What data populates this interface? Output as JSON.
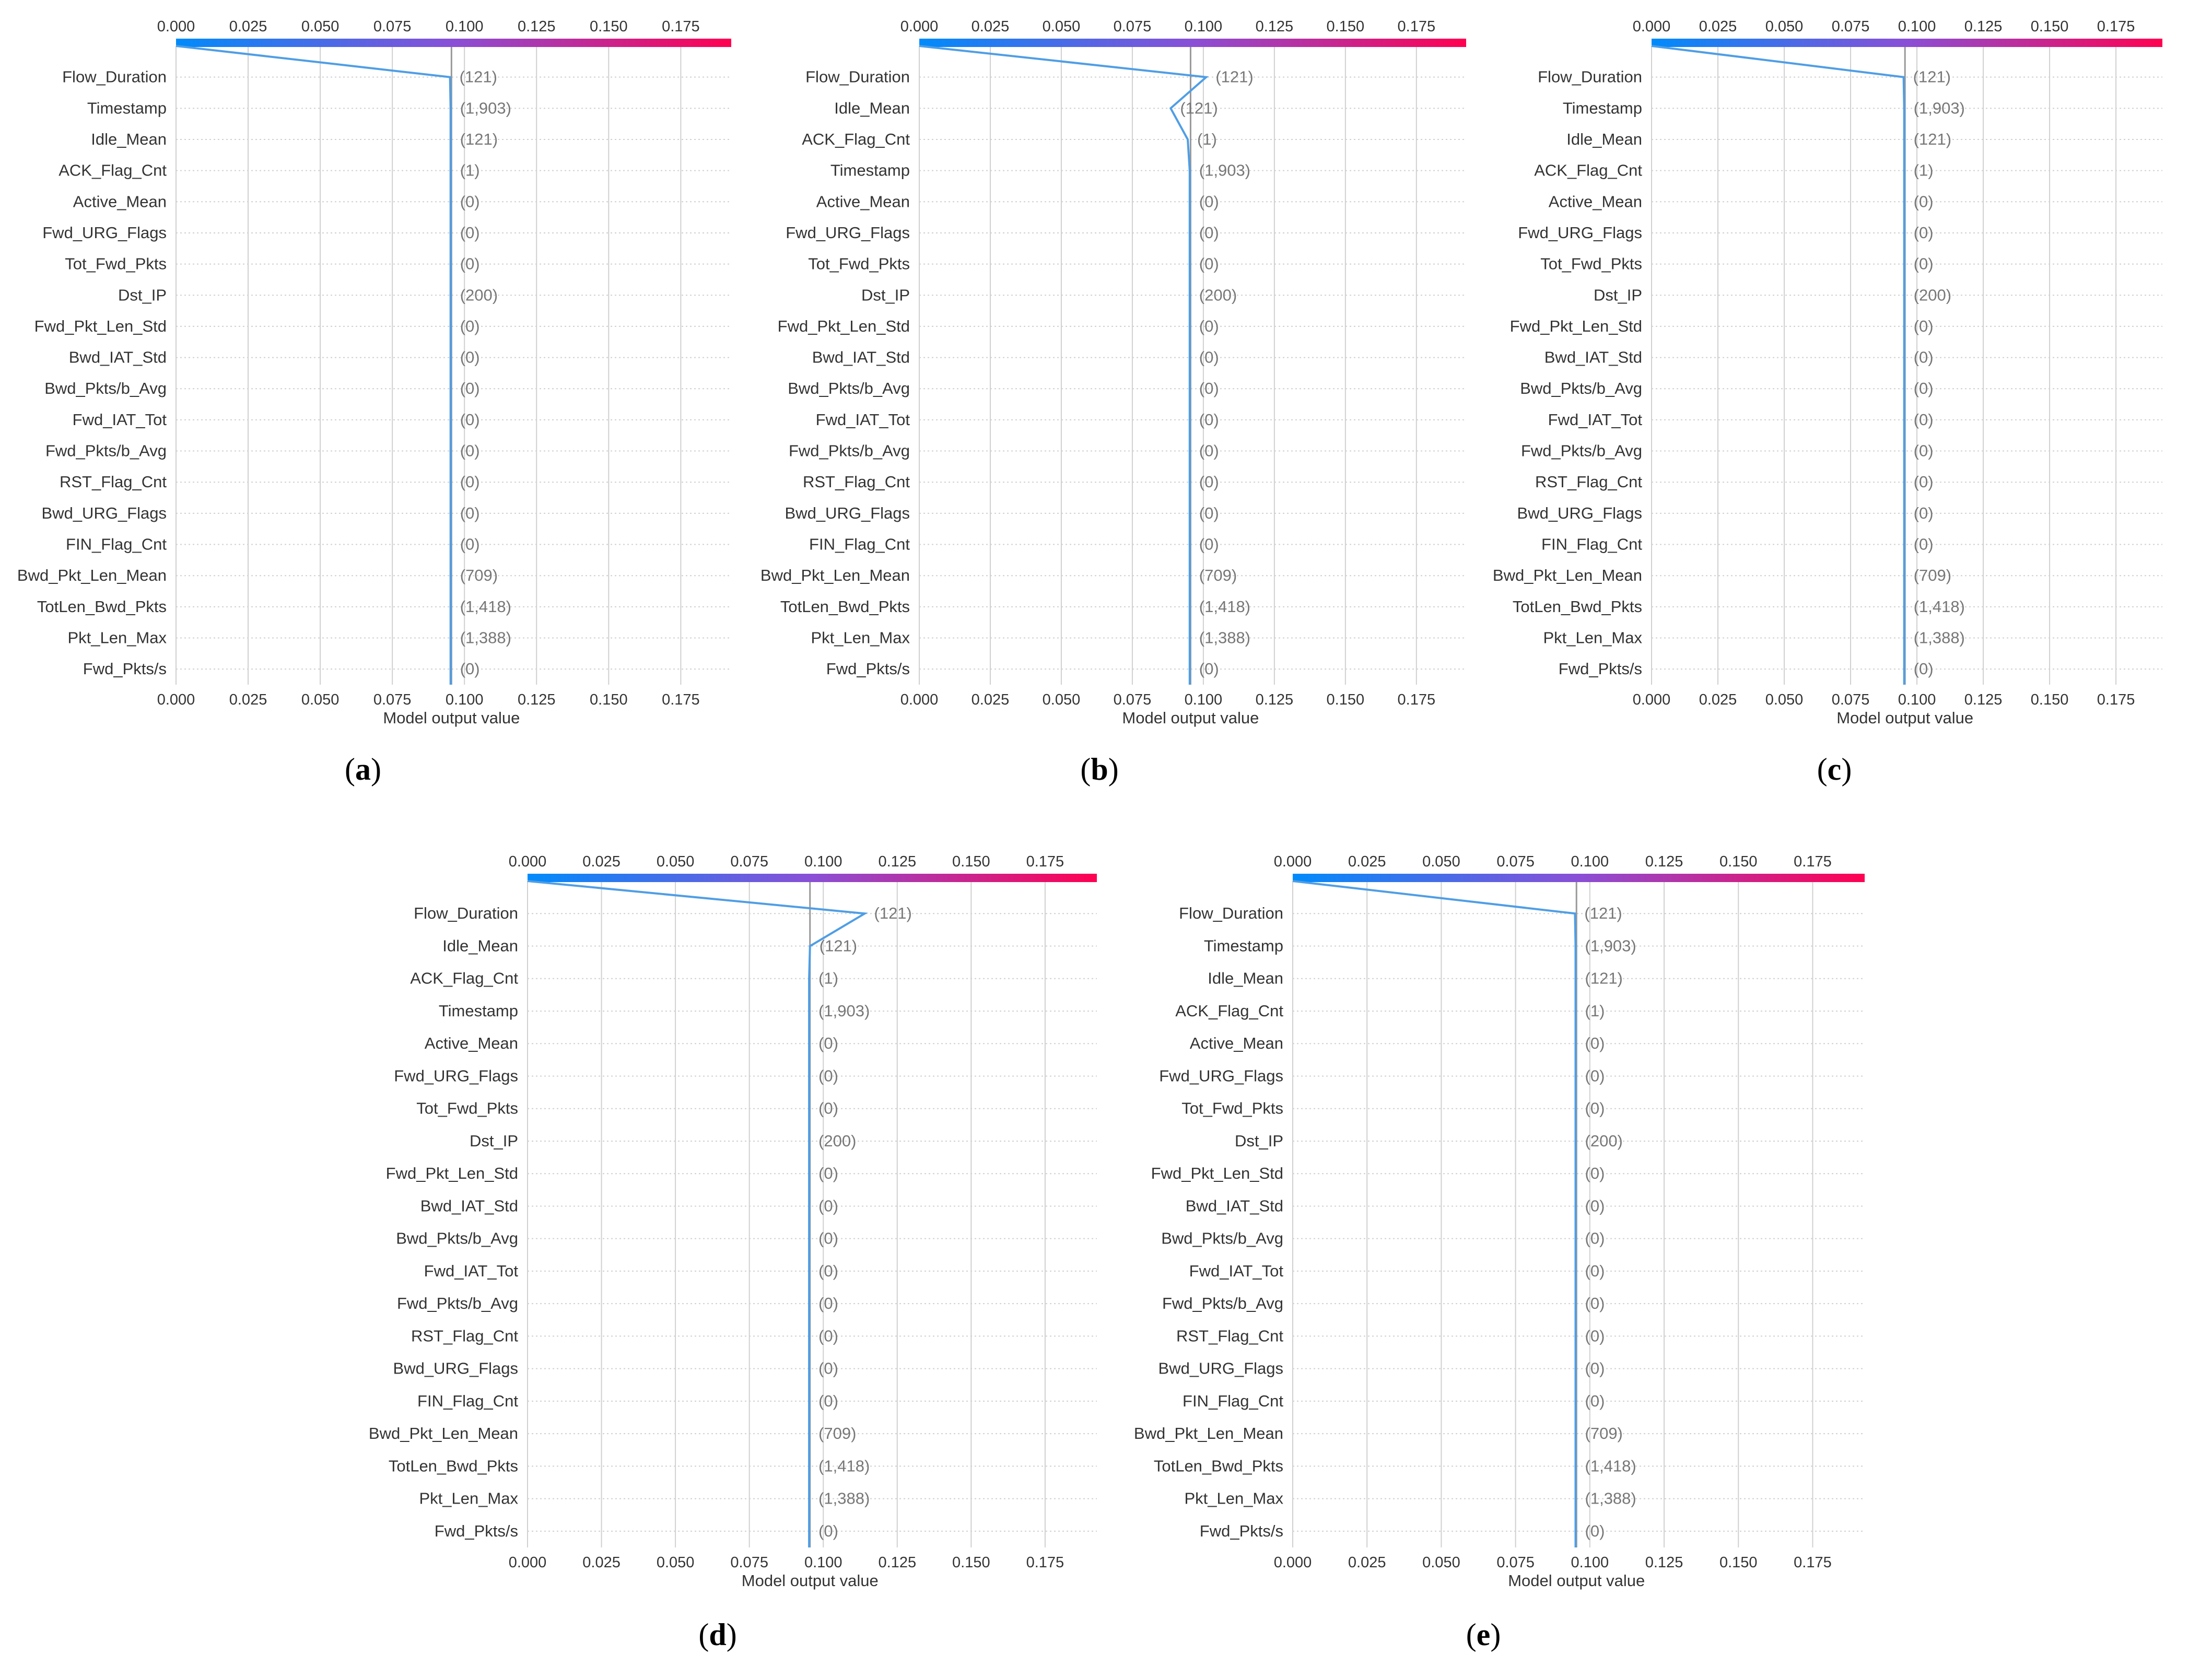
{
  "colors": {
    "gradient_start": "#008bfb",
    "gradient_mid": "#8a4fd6",
    "gradient_end": "#ff0051",
    "decision_line": "#4f9ee5",
    "expected_value_line": "#999999",
    "grid": "#d0d0d0"
  },
  "x_axis_label": "Model output value",
  "tick_labels": [
    "0.000",
    "0.025",
    "0.050",
    "0.075",
    "0.100",
    "0.125",
    "0.150",
    "0.175"
  ],
  "chart_data": [
    {
      "type": "decision_plot",
      "caption_letter": "a",
      "xlabel": "Model output value",
      "xlim": [
        0.0,
        0.1925
      ],
      "x_ticks": [
        0.0,
        0.025,
        0.05,
        0.075,
        0.1,
        0.125,
        0.15,
        0.175
      ],
      "base_value": 0.0955,
      "features": [
        "Flow_Duration",
        "Timestamp",
        "Idle_Mean",
        "ACK_Flag_Cnt",
        "Active_Mean",
        "Fwd_URG_Flags",
        "Tot_Fwd_Pkts",
        "Dst_IP",
        "Fwd_Pkt_Len_Std",
        "Bwd_IAT_Std",
        "Bwd_Pkts/b_Avg",
        "Fwd_IAT_Tot",
        "Fwd_Pkts/b_Avg",
        "RST_Flag_Cnt",
        "Bwd_URG_Flags",
        "FIN_Flag_Cnt",
        "Bwd_Pkt_Len_Mean",
        "TotLen_Bwd_Pkts",
        "Pkt_Len_Max",
        "Fwd_Pkts/s"
      ],
      "feature_values": [
        "(121)",
        "(1,903)",
        "(121)",
        "(1)",
        "(0)",
        "(0)",
        "(0)",
        "(200)",
        "(0)",
        "(0)",
        "(0)",
        "(0)",
        "(0)",
        "(0)",
        "(0)",
        "(0)",
        "(709)",
        "(1,418)",
        "(1,388)",
        "(0)"
      ],
      "path": [
        0.0,
        0.095,
        0.0952,
        0.0952,
        0.0952,
        0.0952,
        0.0952,
        0.0952,
        0.0952,
        0.0952,
        0.0952,
        0.0952,
        0.0952,
        0.0952,
        0.0952,
        0.0952,
        0.0952,
        0.0952,
        0.0952,
        0.0952,
        0.0952
      ]
    },
    {
      "type": "decision_plot",
      "caption_letter": "b",
      "xlabel": "Model output value",
      "xlim": [
        0.0,
        0.1925
      ],
      "x_ticks": [
        0.0,
        0.025,
        0.05,
        0.075,
        0.1,
        0.125,
        0.15,
        0.175
      ],
      "base_value": 0.0955,
      "features": [
        "Flow_Duration",
        "Idle_Mean",
        "ACK_Flag_Cnt",
        "Timestamp",
        "Active_Mean",
        "Fwd_URG_Flags",
        "Tot_Fwd_Pkts",
        "Dst_IP",
        "Fwd_Pkt_Len_Std",
        "Bwd_IAT_Std",
        "Bwd_Pkts/b_Avg",
        "Fwd_IAT_Tot",
        "Fwd_Pkts/b_Avg",
        "RST_Flag_Cnt",
        "Bwd_URG_Flags",
        "FIN_Flag_Cnt",
        "Bwd_Pkt_Len_Mean",
        "TotLen_Bwd_Pkts",
        "Pkt_Len_Max",
        "Fwd_Pkts/s"
      ],
      "feature_values": [
        "(121)",
        "(121)",
        "(1)",
        "(1,903)",
        "(0)",
        "(0)",
        "(0)",
        "(200)",
        "(0)",
        "(0)",
        "(0)",
        "(0)",
        "(0)",
        "(0)",
        "(0)",
        "(0)",
        "(709)",
        "(1,418)",
        "(1,388)",
        "(0)"
      ],
      "path": [
        0.0,
        0.101,
        0.0885,
        0.0945,
        0.0952,
        0.0952,
        0.0952,
        0.0952,
        0.0952,
        0.0952,
        0.0952,
        0.0952,
        0.0952,
        0.0952,
        0.0952,
        0.0952,
        0.0952,
        0.0952,
        0.0952,
        0.0952,
        0.0952
      ]
    },
    {
      "type": "decision_plot",
      "caption_letter": "c",
      "xlabel": "Model output value",
      "xlim": [
        0.0,
        0.1925
      ],
      "x_ticks": [
        0.0,
        0.025,
        0.05,
        0.075,
        0.1,
        0.125,
        0.15,
        0.175
      ],
      "base_value": 0.0955,
      "features": [
        "Flow_Duration",
        "Timestamp",
        "Idle_Mean",
        "ACK_Flag_Cnt",
        "Active_Mean",
        "Fwd_URG_Flags",
        "Tot_Fwd_Pkts",
        "Dst_IP",
        "Fwd_Pkt_Len_Std",
        "Bwd_IAT_Std",
        "Bwd_Pkts/b_Avg",
        "Fwd_IAT_Tot",
        "Fwd_Pkts/b_Avg",
        "RST_Flag_Cnt",
        "Bwd_URG_Flags",
        "FIN_Flag_Cnt",
        "Bwd_Pkt_Len_Mean",
        "TotLen_Bwd_Pkts",
        "Pkt_Len_Max",
        "Fwd_Pkts/s"
      ],
      "feature_values": [
        "(121)",
        "(1,903)",
        "(121)",
        "(1)",
        "(0)",
        "(0)",
        "(0)",
        "(200)",
        "(0)",
        "(0)",
        "(0)",
        "(0)",
        "(0)",
        "(0)",
        "(0)",
        "(0)",
        "(709)",
        "(1,418)",
        "(1,388)",
        "(0)"
      ],
      "path": [
        0.0,
        0.095,
        0.0952,
        0.0952,
        0.0952,
        0.0952,
        0.0952,
        0.0952,
        0.0952,
        0.0952,
        0.0952,
        0.0952,
        0.0952,
        0.0952,
        0.0952,
        0.0952,
        0.0952,
        0.0952,
        0.0952,
        0.0952,
        0.0952
      ]
    },
    {
      "type": "decision_plot",
      "caption_letter": "d",
      "xlabel": "Model output value",
      "xlim": [
        0.0,
        0.1925
      ],
      "x_ticks": [
        0.0,
        0.025,
        0.05,
        0.075,
        0.1,
        0.125,
        0.15,
        0.175
      ],
      "base_value": 0.0955,
      "features": [
        "Flow_Duration",
        "Idle_Mean",
        "ACK_Flag_Cnt",
        "Timestamp",
        "Active_Mean",
        "Fwd_URG_Flags",
        "Tot_Fwd_Pkts",
        "Dst_IP",
        "Fwd_Pkt_Len_Std",
        "Bwd_IAT_Std",
        "Bwd_Pkts/b_Avg",
        "Fwd_IAT_Tot",
        "Fwd_Pkts/b_Avg",
        "RST_Flag_Cnt",
        "Bwd_URG_Flags",
        "FIN_Flag_Cnt",
        "Bwd_Pkt_Len_Mean",
        "TotLen_Bwd_Pkts",
        "Pkt_Len_Max",
        "Fwd_Pkts/s"
      ],
      "feature_values": [
        "(121)",
        "(121)",
        "(1)",
        "(1,903)",
        "(0)",
        "(0)",
        "(0)",
        "(200)",
        "(0)",
        "(0)",
        "(0)",
        "(0)",
        "(0)",
        "(0)",
        "(0)",
        "(0)",
        "(709)",
        "(1,418)",
        "(1,388)",
        "(0)"
      ],
      "path": [
        0.0,
        0.114,
        0.0955,
        0.0952,
        0.0952,
        0.0952,
        0.0952,
        0.0952,
        0.0952,
        0.0952,
        0.0952,
        0.0952,
        0.0952,
        0.0952,
        0.0952,
        0.0952,
        0.0952,
        0.0952,
        0.0952,
        0.0952,
        0.0952
      ]
    },
    {
      "type": "decision_plot",
      "caption_letter": "e",
      "xlabel": "Model output value",
      "xlim": [
        0.0,
        0.1925
      ],
      "x_ticks": [
        0.0,
        0.025,
        0.05,
        0.075,
        0.1,
        0.125,
        0.15,
        0.175
      ],
      "base_value": 0.0955,
      "features": [
        "Flow_Duration",
        "Timestamp",
        "Idle_Mean",
        "ACK_Flag_Cnt",
        "Active_Mean",
        "Fwd_URG_Flags",
        "Tot_Fwd_Pkts",
        "Dst_IP",
        "Fwd_Pkt_Len_Std",
        "Bwd_IAT_Std",
        "Bwd_Pkts/b_Avg",
        "Fwd_IAT_Tot",
        "Fwd_Pkts/b_Avg",
        "RST_Flag_Cnt",
        "Bwd_URG_Flags",
        "FIN_Flag_Cnt",
        "Bwd_Pkt_Len_Mean",
        "TotLen_Bwd_Pkts",
        "Pkt_Len_Max",
        "Fwd_Pkts/s"
      ],
      "feature_values": [
        "(121)",
        "(1,903)",
        "(121)",
        "(1)",
        "(0)",
        "(0)",
        "(0)",
        "(200)",
        "(0)",
        "(0)",
        "(0)",
        "(0)",
        "(0)",
        "(0)",
        "(0)",
        "(0)",
        "(709)",
        "(1,418)",
        "(1,388)",
        "(0)"
      ],
      "path": [
        0.0,
        0.095,
        0.0952,
        0.0952,
        0.0952,
        0.0952,
        0.0952,
        0.0952,
        0.0952,
        0.0952,
        0.0952,
        0.0952,
        0.0952,
        0.0952,
        0.0952,
        0.0952,
        0.0952,
        0.0952,
        0.0952,
        0.0952,
        0.0952
      ]
    }
  ]
}
